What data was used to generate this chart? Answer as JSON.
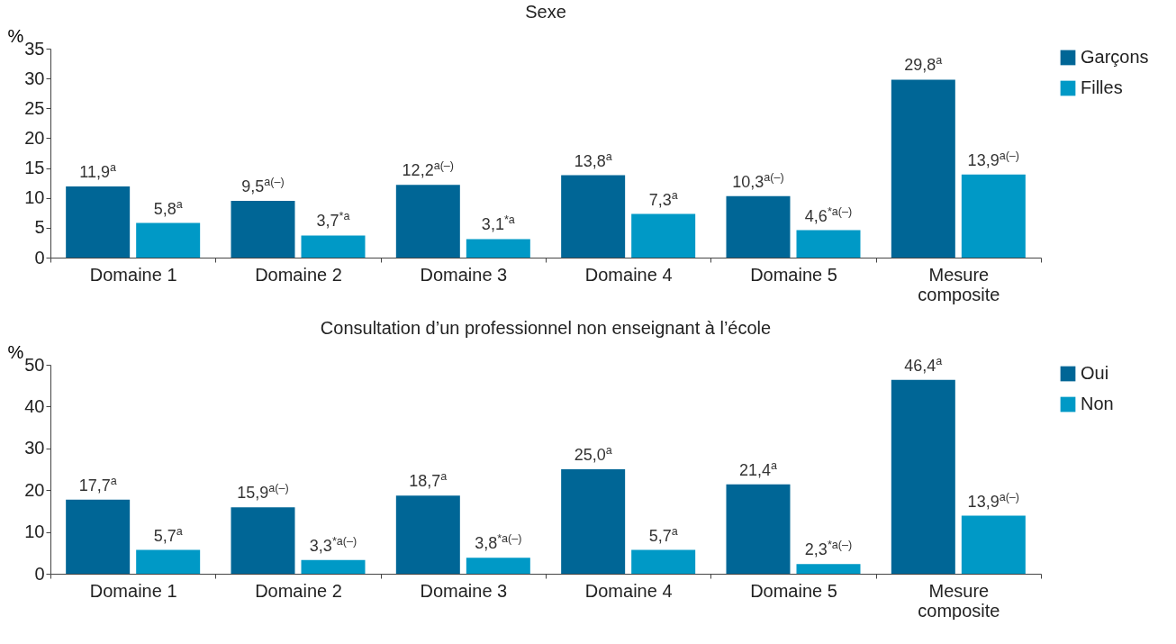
{
  "chart_data": [
    {
      "type": "bar",
      "title": "Sexe",
      "ylabel": "%",
      "categories": [
        "Domaine 1",
        "Domaine 2",
        "Domaine 3",
        "Domaine 4",
        "Domaine 5",
        "Mesure composite"
      ],
      "series": [
        {
          "name": "Garçons",
          "color": "#006696",
          "values": [
            11.9,
            9.5,
            12.2,
            13.8,
            10.3,
            29.8
          ],
          "value_labels": [
            "11,9$^{a}$",
            "9,5$^{a(–)}$",
            "12,2$^{a(–)}$",
            "13,8$^{a}$",
            "10,3$^{a(–)}$",
            "29,8$^{a}$"
          ]
        },
        {
          "name": "Filles",
          "color": "#0099c6",
          "values": [
            5.8,
            3.7,
            3.1,
            7.3,
            4.6,
            13.9
          ],
          "value_labels": [
            "5,8$^{a}$",
            "3,7$^{*a}$",
            "3,1$^{*a}$",
            "7,3$^{a}$",
            "4,6$^{*a(–)}$",
            "13,9$^{a(–)}$"
          ]
        }
      ],
      "ylim": [
        0,
        35
      ],
      "yticks": [
        0,
        5,
        10,
        15,
        20,
        25,
        30,
        35
      ],
      "legend": "right",
      "grid": false
    },
    {
      "type": "bar",
      "title": "Consultation d’un professionnel non enseignant à l’école",
      "ylabel": "%",
      "categories": [
        "Domaine 1",
        "Domaine 2",
        "Domaine 3",
        "Domaine 4",
        "Domaine 5",
        "Mesure composite"
      ],
      "series": [
        {
          "name": "Oui",
          "color": "#006696",
          "values": [
            17.7,
            15.9,
            18.7,
            25.0,
            21.4,
            46.4
          ],
          "value_labels": [
            "17,7$^{a}$",
            "15,9$^{a(–)}$",
            "18,7$^{a}$",
            "25,0$^{a}$",
            "21,4$^{a}$",
            "46,4$^{a}$"
          ]
        },
        {
          "name": "Non",
          "color": "#0099c6",
          "values": [
            5.7,
            3.3,
            3.8,
            5.7,
            2.3,
            13.9
          ],
          "value_labels": [
            "5,7$^{a}$",
            "3,3$^{*a(–)}$",
            "3,8$^{*a(–)}$",
            "5,7$^{a}$",
            "2,3$^{*a(–)}$",
            "13,9$^{a(–)}$"
          ]
        }
      ],
      "ylim": [
        0,
        50
      ],
      "yticks": [
        0,
        10,
        20,
        30,
        40,
        50
      ],
      "legend": "right",
      "grid": false
    }
  ]
}
